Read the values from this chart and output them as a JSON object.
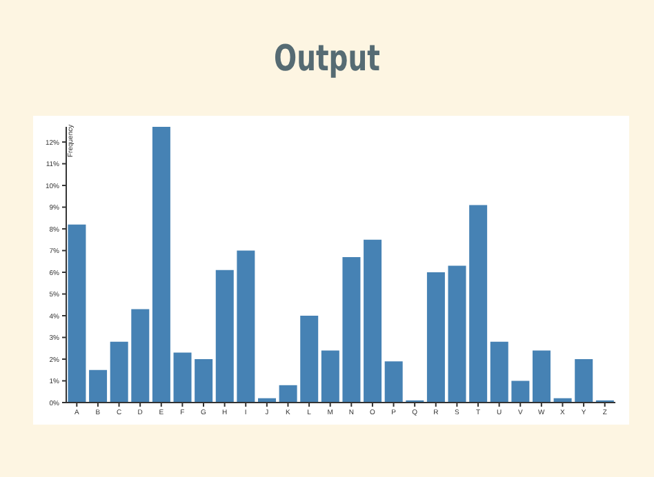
{
  "chart_data": {
    "type": "bar",
    "title": "Output",
    "ylabel": "Frequency",
    "categories": [
      "A",
      "B",
      "C",
      "D",
      "E",
      "F",
      "G",
      "H",
      "I",
      "J",
      "K",
      "L",
      "M",
      "N",
      "O",
      "P",
      "Q",
      "R",
      "S",
      "T",
      "U",
      "V",
      "W",
      "X",
      "Y",
      "Z"
    ],
    "values": [
      8.2,
      1.5,
      2.8,
      4.3,
      12.7,
      2.3,
      2.0,
      6.1,
      7.0,
      0.2,
      0.8,
      4.0,
      2.4,
      6.7,
      7.5,
      1.9,
      0.1,
      6.0,
      6.3,
      9.1,
      2.8,
      1.0,
      2.4,
      0.2,
      2.0,
      0.1
    ],
    "color": "#4682b4",
    "ylim": [
      0,
      12.7
    ],
    "yticks": [
      {
        "value": 0,
        "label": "0%"
      },
      {
        "value": 1,
        "label": "1%"
      },
      {
        "value": 2,
        "label": "2%"
      },
      {
        "value": 3,
        "label": "3%"
      },
      {
        "value": 4,
        "label": "4%"
      },
      {
        "value": 5,
        "label": "5%"
      },
      {
        "value": 6,
        "label": "6%"
      },
      {
        "value": 7,
        "label": "7%"
      },
      {
        "value": 8,
        "label": "8%"
      },
      {
        "value": 9,
        "label": "9%"
      },
      {
        "value": 10,
        "label": "10%"
      },
      {
        "value": 11,
        "label": "11%"
      },
      {
        "value": 12,
        "label": "12%"
      }
    ],
    "grid": false,
    "legend": false
  }
}
